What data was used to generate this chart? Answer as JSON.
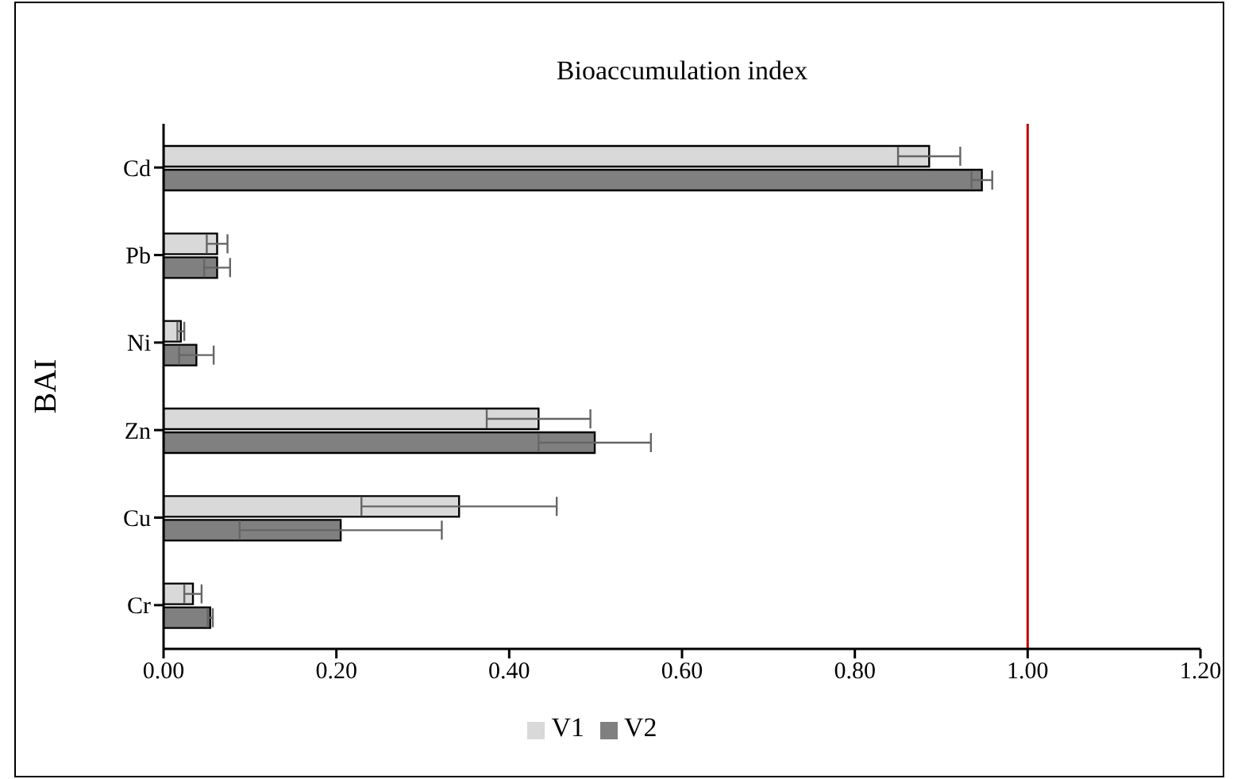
{
  "chart_data": {
    "type": "bar",
    "orientation": "horizontal",
    "title": "Bioaccumulation index",
    "ylabel": "BAI",
    "categories": [
      "Cd",
      "Pb",
      "Ni",
      "Zn",
      "Cu",
      "Cr"
    ],
    "series": [
      {
        "name": "V1",
        "color": "#d9d9d9",
        "values": [
          0.886,
          0.062,
          0.02,
          0.434,
          0.342,
          0.034
        ],
        "errors": [
          0.036,
          0.012,
          0.004,
          0.06,
          0.113,
          0.01
        ]
      },
      {
        "name": "V2",
        "color": "#808080",
        "values": [
          0.947,
          0.062,
          0.038,
          0.499,
          0.205,
          0.054
        ],
        "errors": [
          0.012,
          0.015,
          0.02,
          0.065,
          0.117,
          0.003
        ]
      }
    ],
    "xlim": [
      0,
      1.2
    ],
    "xticks": [
      {
        "value": 0,
        "label": "0.00"
      },
      {
        "value": 0.2,
        "label": "0.20"
      },
      {
        "value": 0.4,
        "label": "0.40"
      },
      {
        "value": 0.6,
        "label": "0.60"
      },
      {
        "value": 0.8,
        "label": "0.80"
      },
      {
        "value": 1,
        "label": "1.00"
      },
      {
        "value": 1.2,
        "label": "1.20"
      }
    ],
    "ref_lines": [
      {
        "axis": "x",
        "value": 1,
        "color": "#c00000"
      }
    ],
    "grid": false,
    "legend": "bottom"
  }
}
